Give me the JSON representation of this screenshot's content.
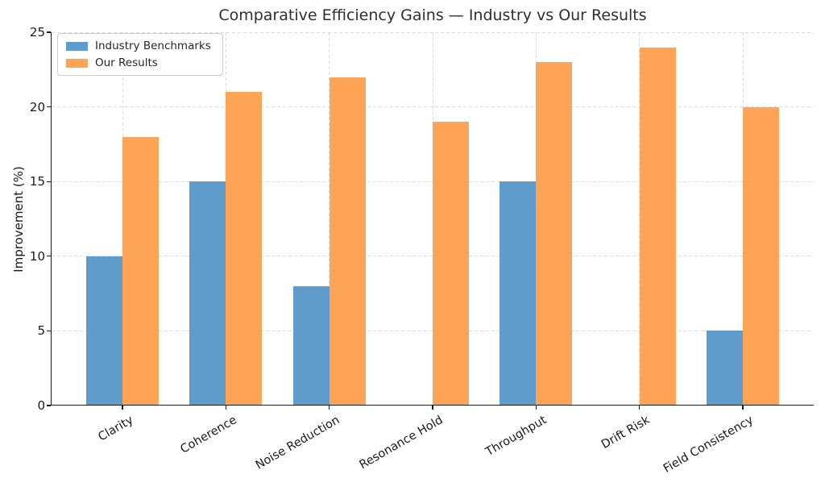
{
  "chart_data": {
    "type": "bar",
    "title": "Comparative Efficiency Gains — Industry vs Our Results",
    "xlabel": "",
    "ylabel": "Improvement (%)",
    "categories": [
      "Clarity",
      "Coherence",
      "Noise Reduction",
      "Resonance Hold",
      "Throughput",
      "Drift Risk",
      "Field Consistency"
    ],
    "series": [
      {
        "name": "Industry Benchmarks",
        "color": "#5F9BCB",
        "values": [
          10,
          15,
          8,
          0,
          15,
          0,
          5
        ]
      },
      {
        "name": "Our Results",
        "color": "#FDA457",
        "values": [
          18,
          21,
          22,
          19,
          23,
          24,
          20
        ]
      }
    ],
    "ylim": [
      0,
      25
    ],
    "yticks": [
      0,
      5,
      10,
      15,
      20,
      25
    ],
    "grid": "dashed-both-axes",
    "legend_position": "upper-left",
    "xtick_rotation_deg": 30
  }
}
